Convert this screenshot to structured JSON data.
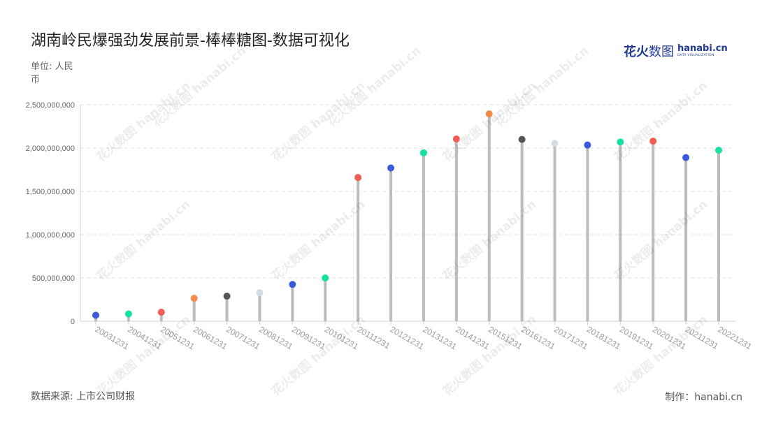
{
  "title": "湖南岭民爆强劲发展前景-棒棒糖图-数据可视化",
  "unit_label": "单位: 人民币",
  "source_label": "数据来源: 上市公司财报",
  "credit_label": "制作：hanabi.cn",
  "logo": {
    "cn_bold": "花火",
    "cn_thin": "数图",
    "en": "hanabi.cn",
    "en_sub": "DATA VISUALIZATION"
  },
  "watermark_text": "花火数图 hanabi.cn",
  "colors": {
    "stem": "#bdbdbd",
    "grid": "#e2e2e2",
    "axis": "#cfcfcf",
    "tick_text": "#666666",
    "category_text": "#9a9a9a",
    "blue": "#3b5bdb",
    "green": "#16e0a0",
    "red": "#f25c54",
    "orange": "#f28b4b",
    "dark": "#555555",
    "light": "#d5dbe3"
  },
  "chart_data": {
    "type": "lollipop",
    "title": "湖南岭民爆强劲发展前景-棒棒糖图-数据可视化",
    "ylabel": "单位: 人民币",
    "xlabel": "",
    "ylim": [
      0,
      2500000000
    ],
    "yticks": [
      0,
      500000000,
      1000000000,
      1500000000,
      2000000000,
      2500000000
    ],
    "ytick_labels": [
      "0",
      "500,000,000",
      "1,000,000,000",
      "1,500,000,000",
      "2,000,000,000",
      "2,500,000,000"
    ],
    "grid": true,
    "categories": [
      "20031231",
      "20041231",
      "20051231",
      "20061231",
      "20071231",
      "20081231",
      "20091231",
      "20101231",
      "20111231",
      "20121231",
      "20131231",
      "20141231",
      "20151231",
      "20161231",
      "20171231",
      "20181231",
      "20191231",
      "20201231",
      "20211231",
      "20221231"
    ],
    "values": [
      70000000,
      85000000,
      105000000,
      265000000,
      290000000,
      330000000,
      425000000,
      500000000,
      1660000000,
      1770000000,
      1945000000,
      2105000000,
      2395000000,
      2100000000,
      2055000000,
      2035000000,
      2070000000,
      2080000000,
      1890000000,
      1975000000
    ],
    "point_colors": [
      "blue",
      "green",
      "red",
      "orange",
      "dark",
      "light",
      "blue",
      "green",
      "red",
      "blue",
      "green",
      "red",
      "orange",
      "dark",
      "light",
      "blue",
      "green",
      "red",
      "blue",
      "green"
    ]
  }
}
